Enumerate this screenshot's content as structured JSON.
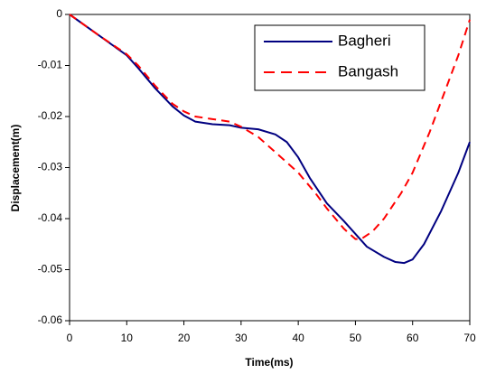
{
  "chart_data": {
    "type": "line",
    "x_label": "Time(ms)",
    "y_label": "Displacement(m)",
    "xlim": [
      0,
      70
    ],
    "xticks": [
      0,
      10,
      20,
      30,
      40,
      50,
      60,
      70
    ],
    "ylim": [
      -0.06,
      0
    ],
    "yticks": [
      0,
      -0.01,
      -0.02,
      -0.03,
      -0.04,
      -0.05,
      -0.06
    ],
    "legend": "upper-right",
    "grid": false,
    "series": [
      {
        "name": "Bagheri",
        "color": "#000080",
        "dash": false,
        "x": [
          0,
          5,
          10,
          12,
          15,
          18,
          20,
          22,
          25,
          28,
          30,
          33,
          36,
          38,
          40,
          42,
          45,
          48,
          50,
          52,
          55,
          57,
          58.5,
          60,
          62,
          65,
          68,
          70
        ],
        "values": [
          0,
          -0.004,
          -0.008,
          -0.0105,
          -0.0145,
          -0.018,
          -0.0198,
          -0.021,
          -0.0215,
          -0.0217,
          -0.0222,
          -0.0225,
          -0.0235,
          -0.025,
          -0.028,
          -0.032,
          -0.037,
          -0.0405,
          -0.043,
          -0.0455,
          -0.0475,
          -0.0485,
          -0.0487,
          -0.048,
          -0.045,
          -0.0385,
          -0.031,
          -0.025
        ]
      },
      {
        "name": "Bangash",
        "color": "#ff0000",
        "dash": true,
        "x": [
          0,
          5,
          10,
          12,
          15,
          18,
          20,
          22,
          25,
          28,
          30,
          33,
          36,
          40,
          43,
          45,
          48,
          50,
          51,
          53,
          55,
          58,
          60,
          63,
          66,
          68,
          70
        ],
        "values": [
          0,
          -0.004,
          -0.0078,
          -0.01,
          -0.014,
          -0.0175,
          -0.019,
          -0.02,
          -0.0205,
          -0.021,
          -0.022,
          -0.024,
          -0.027,
          -0.031,
          -0.035,
          -0.038,
          -0.042,
          -0.044,
          -0.044,
          -0.0425,
          -0.04,
          -0.035,
          -0.031,
          -0.023,
          -0.014,
          -0.008,
          -0.001
        ]
      }
    ]
  }
}
